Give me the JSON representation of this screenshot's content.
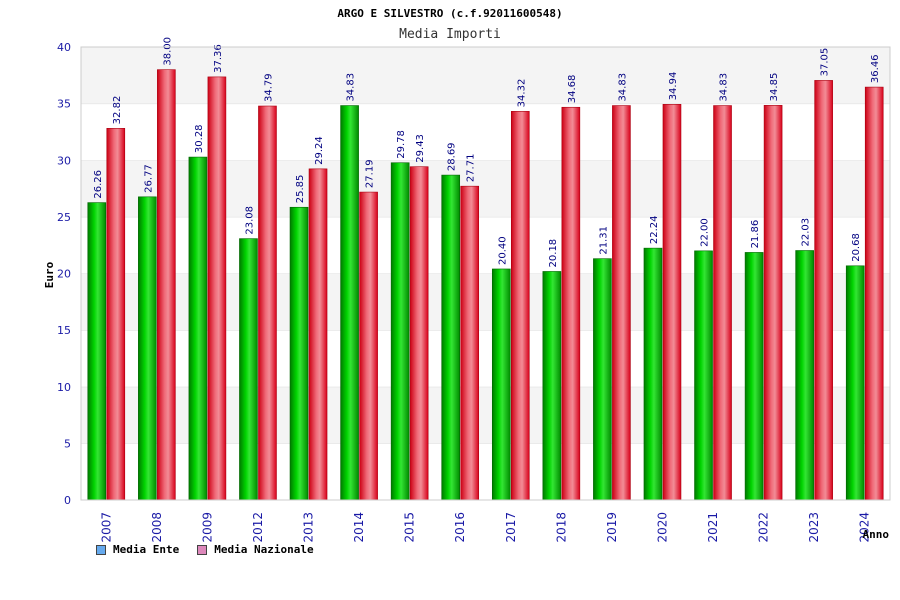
{
  "chart_data": {
    "type": "bar",
    "title": "ARGO E SILVESTRO (c.f.92011600548)",
    "subtitle": "Media Importi",
    "xlabel": "Anno",
    "ylabel": "Euro",
    "ylim": [
      0,
      40
    ],
    "yticks": [
      "0",
      "5",
      "10",
      "15",
      "20",
      "25",
      "30",
      "35",
      "40"
    ],
    "categories": [
      "2007",
      "2008",
      "2009",
      "2012",
      "2013",
      "2014",
      "2015",
      "2016",
      "2017",
      "2018",
      "2019",
      "2020",
      "2021",
      "2022",
      "2023",
      "2024"
    ],
    "series": [
      {
        "name": "Media Ente",
        "color": "#00b000",
        "values": [
          26.26,
          26.77,
          30.28,
          23.08,
          25.85,
          34.83,
          29.78,
          28.69,
          20.4,
          20.18,
          21.31,
          22.24,
          22.0,
          21.86,
          22.03,
          20.68
        ],
        "labels": [
          "26.26",
          "26.77",
          "30.28",
          "23.08",
          "25.85",
          "34.83",
          "29.78",
          "28.69",
          "20.40",
          "20.18",
          "21.31",
          "22.24",
          "22.00",
          "21.86",
          "22.03",
          "20.68"
        ]
      },
      {
        "name": "Media Nazionale",
        "color": "#ee1c30",
        "values": [
          32.82,
          38.0,
          37.36,
          34.79,
          29.24,
          27.19,
          29.43,
          27.71,
          34.32,
          34.68,
          34.83,
          34.94,
          34.83,
          34.85,
          37.05,
          36.46
        ],
        "labels": [
          "32.82",
          "38.00",
          "37.36",
          "34.79",
          "29.24",
          "27.19",
          "29.43",
          "27.71",
          "34.32",
          "34.68",
          "34.83",
          "34.94",
          "34.83",
          "34.85",
          "37.05",
          "36.46"
        ]
      }
    ],
    "legend": [
      {
        "label": "Media Ente",
        "color": "#66aaee"
      },
      {
        "label": "Media Nazionale",
        "color": "#dd88bb"
      }
    ],
    "grid": true,
    "legend_position": "bottom-left"
  }
}
